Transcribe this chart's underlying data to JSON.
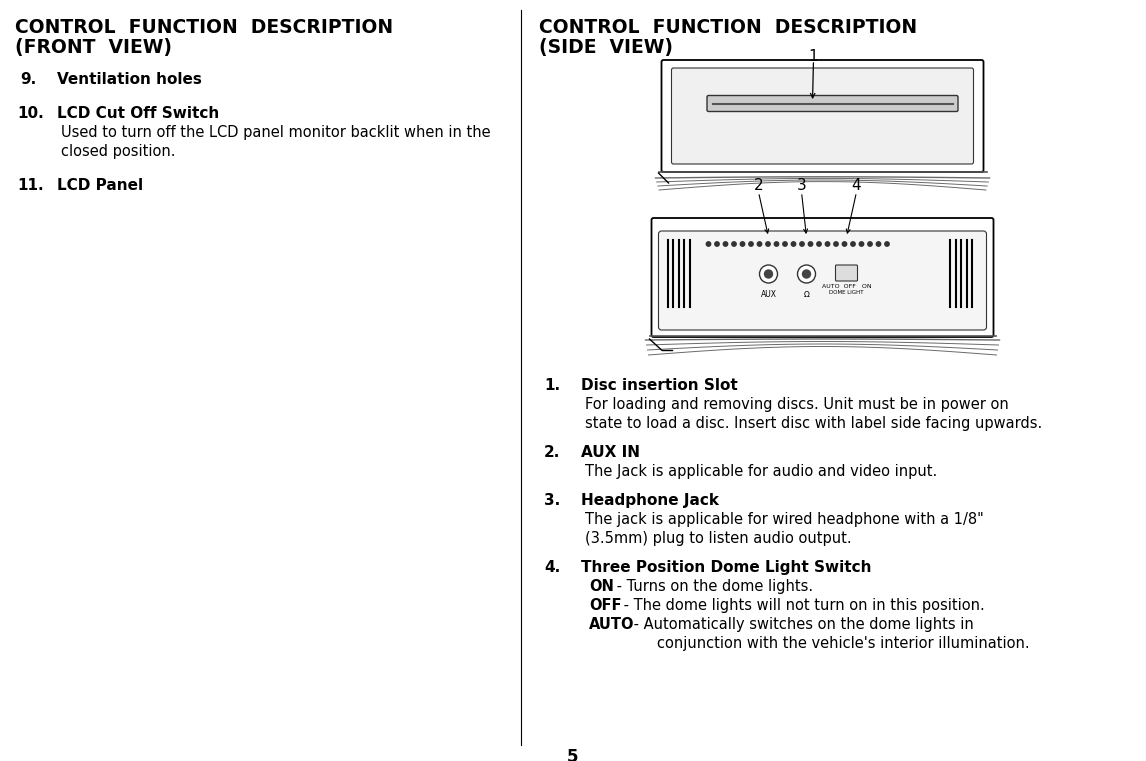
{
  "bg_color": "#ffffff",
  "page_number": "5",
  "left_title_line1": "CONTROL  FUNCTION  DESCRIPTION",
  "left_title_line2": "(FRONT  VIEW)",
  "left_items": [
    {
      "number": "9.",
      "bold": "Ventilation holes",
      "body": ""
    },
    {
      "number": "10.",
      "bold": "LCD Cut Off Switch",
      "body": "Used to turn off the LCD panel monitor backlit when in the\nclosed position."
    },
    {
      "number": "11.",
      "bold": "LCD Panel",
      "body": ""
    }
  ],
  "right_title_line1": "CONTROL  FUNCTION  DESCRIPTION",
  "right_title_line2": "(SIDE  VIEW)",
  "right_items": [
    {
      "number": "1.",
      "bold": "Disc insertion Slot",
      "body": "For loading and removing discs. Unit must be in power on\nstate to load a disc. Insert disc with label side facing upwards."
    },
    {
      "number": "2.",
      "bold": "AUX IN",
      "body": "The Jack is applicable for audio and video input."
    },
    {
      "number": "3.",
      "bold": "Headphone Jack",
      "body": "The jack is applicable for wired headphone with a 1/8\"\n(3.5mm) plug to listen audio output."
    },
    {
      "number": "4.",
      "bold": "Three Position Dome Light Switch",
      "body_bold_parts": [
        [
          "ON",
          " - Turns on the dome lights."
        ],
        [
          "OFF",
          " - The dome lights will not turn on in this position."
        ],
        [
          "AUTO",
          " - Automatically switches on the dome lights in"
        ],
        [
          "",
          "       conjunction with the vehicle's interior illumination."
        ]
      ]
    }
  ],
  "title_fontsize": 13.5,
  "item_num_fontsize": 11.0,
  "item_bold_fontsize": 11.0,
  "item_body_fontsize": 10.5,
  "page_num_fontsize": 12
}
